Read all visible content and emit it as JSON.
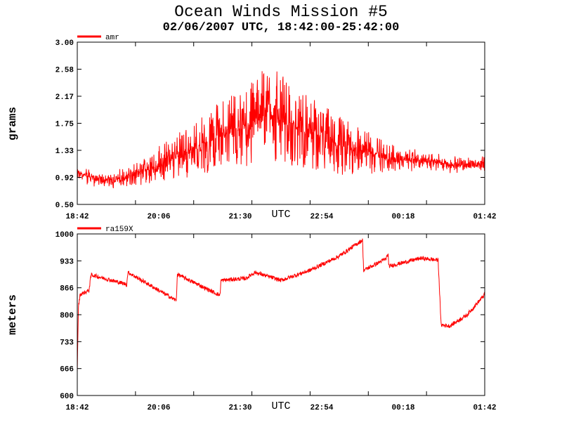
{
  "title": "Ocean Winds Mission #5",
  "subtitle": "02/06/2007  UTC, 18:42:00-25:42:00",
  "colors": {
    "series": "#ff0000",
    "axis": "#000000",
    "background": "#ffffff"
  },
  "chart_data": [
    {
      "type": "line",
      "legend": "amr",
      "ylabel": "grams",
      "xlabel": "UTC",
      "x_tick_labels": [
        "18:42",
        "20:06",
        "21:30",
        "22:54",
        "00:18",
        "01:42"
      ],
      "y_tick_labels": [
        "0.50",
        "0.92",
        "1.33",
        "1.75",
        "2.17",
        "2.58",
        "3.00"
      ],
      "ylim": [
        0.5,
        3.0
      ],
      "xlim_hours": [
        0,
        7
      ],
      "grid": false,
      "series": [
        {
          "x": [
            0,
            0.5,
            1,
            1.5,
            2,
            2.5,
            3,
            3.25,
            3.5,
            4,
            4.5,
            5,
            5.5,
            6,
            6.5,
            7
          ],
          "y": [
            0.98,
            0.85,
            0.96,
            1.15,
            1.35,
            1.6,
            1.72,
            1.95,
            1.8,
            1.6,
            1.42,
            1.3,
            1.2,
            1.18,
            1.1,
            1.12
          ]
        }
      ]
    },
    {
      "type": "line",
      "legend": "ra159X",
      "ylabel": "meters",
      "xlabel": "UTC",
      "x_tick_labels": [
        "18:42",
        "20:06",
        "21:30",
        "22:54",
        "00:18",
        "01:42"
      ],
      "y_tick_labels": [
        "600",
        "666",
        "733",
        "800",
        "866",
        "933",
        "1000"
      ],
      "ylim": [
        600,
        1000
      ],
      "xlim_hours": [
        0,
        7
      ],
      "grid": false,
      "series": [
        {
          "x": [
            0,
            0.02,
            0.05,
            0.2,
            0.24,
            0.26,
            0.85,
            0.87,
            1.7,
            1.72,
            2.45,
            2.47,
            2.9,
            3.05,
            3.5,
            4.0,
            4.5,
            4.9,
            4.92,
            5.3,
            5.34,
            5.35,
            5.9,
            6.2,
            6.25,
            6.4,
            6.7,
            7.0
          ],
          "y": [
            660,
            820,
            850,
            860,
            900,
            898,
            875,
            905,
            835,
            900,
            848,
            885,
            890,
            905,
            885,
            910,
            945,
            985,
            910,
            938,
            950,
            920,
            940,
            935,
            775,
            772,
            800,
            850
          ]
        }
      ]
    }
  ]
}
